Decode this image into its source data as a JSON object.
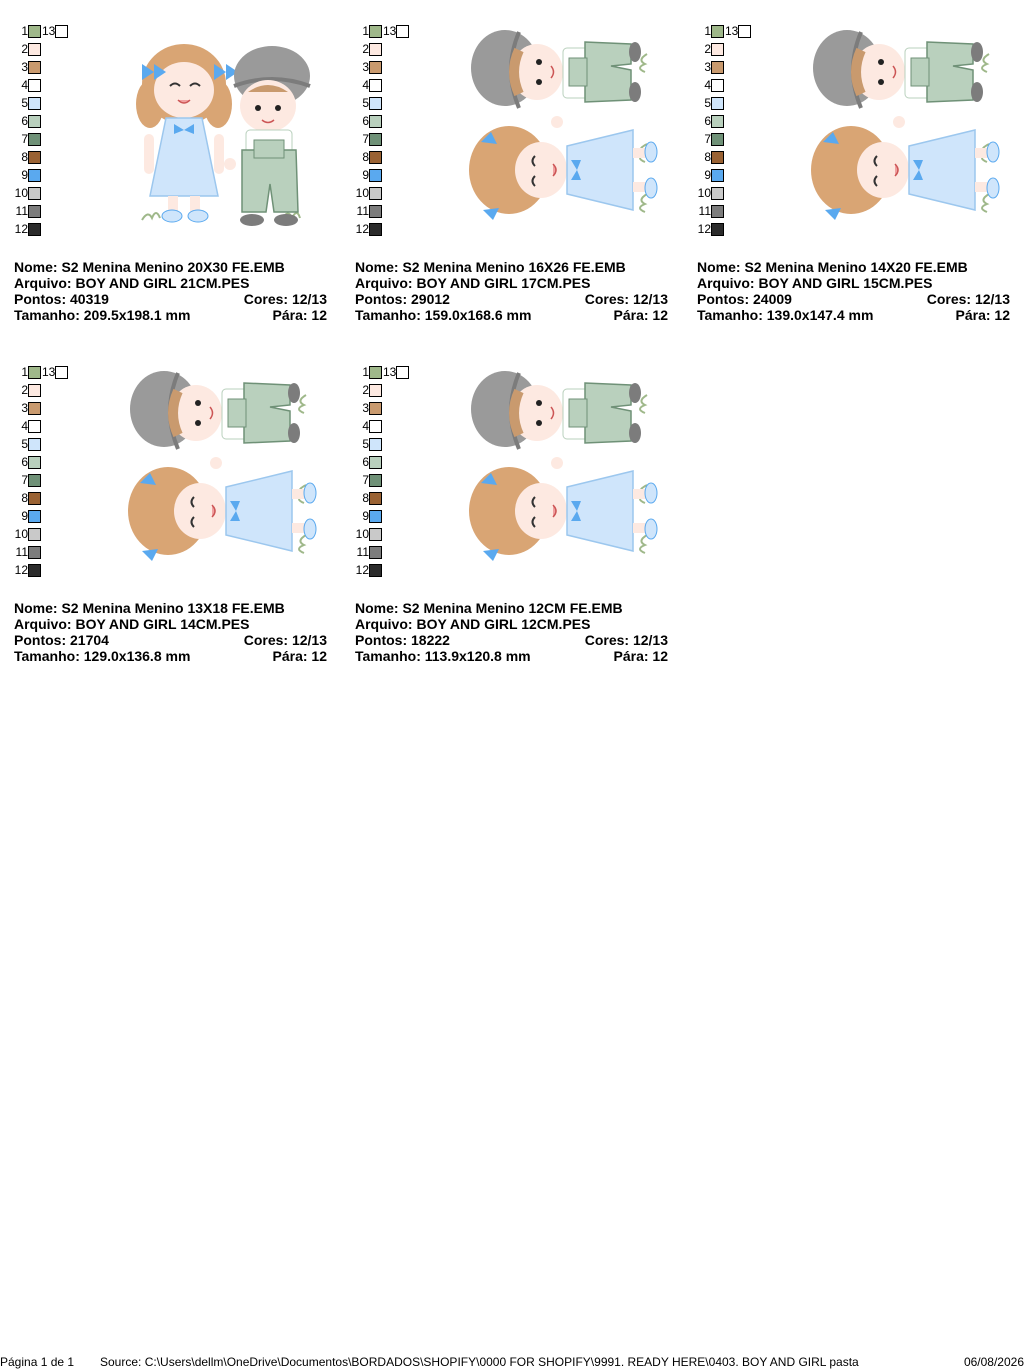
{
  "labels": {
    "nome": "Nome:",
    "arquivo": "Arquivo:",
    "pontos": "Pontos:",
    "cores": "Cores:",
    "tamanho": "Tamanho:",
    "para": "Pára:"
  },
  "palette": {
    "numbers": [
      "1",
      "2",
      "3",
      "4",
      "5",
      "6",
      "7",
      "8",
      "9",
      "10",
      "11",
      "12"
    ],
    "colors": [
      "#9fb88a",
      "#fde9e1",
      "#c99a6e",
      "#ffffff",
      "#cfe5fb",
      "#b9d0bd",
      "#6f9177",
      "#9a6233",
      "#5aa9ef",
      "#c9c9c9",
      "#7c7c7c",
      "#2b2b2b"
    ],
    "extra_number": "13",
    "extra_color": "#ffffff"
  },
  "designs": [
    {
      "nome": "S2 Menina Menino 20X30 FE.EMB",
      "arquivo": "BOY AND GIRL 21CM.PES",
      "pontos": "40319",
      "cores": "12/13",
      "tamanho": "209.5x198.1 mm",
      "para": "12",
      "art": "girl-and-boy-upright"
    },
    {
      "nome": "S2 Menina Menino 16X26 FE.EMB",
      "arquivo": "BOY AND GIRL 17CM.PES",
      "pontos": "29012",
      "cores": "12/13",
      "tamanho": "159.0x168.6 mm",
      "para": "12",
      "art": "girl-and-boy-rotated"
    },
    {
      "nome": "S2 Menina Menino 14X20 FE.EMB",
      "arquivo": "BOY AND GIRL 15CM.PES",
      "pontos": "24009",
      "cores": "12/13",
      "tamanho": "139.0x147.4 mm",
      "para": "12",
      "art": "girl-and-boy-rotated"
    },
    {
      "nome": "S2 Menina Menino 13X18 FE.EMB",
      "arquivo": "BOY AND GIRL 14CM.PES",
      "pontos": "21704",
      "cores": "12/13",
      "tamanho": "129.0x136.8 mm",
      "para": "12",
      "art": "girl-and-boy-rotated"
    },
    {
      "nome": "S2 Menina Menino 12CM FE.EMB",
      "arquivo": "BOY AND GIRL 12CM.PES",
      "pontos": "18222",
      "cores": "12/13",
      "tamanho": "113.9x120.8 mm",
      "para": "12",
      "art": "girl-and-boy-rotated"
    }
  ],
  "footer": {
    "page": "Página 1 de 1",
    "source": "Source: C:\\Users\\dellm\\OneDrive\\Documentos\\BORDADOS\\SHOPIFY\\0000 FOR SHOPIFY\\9991. READY HERE\\0403. BOY AND GIRL pasta",
    "date": "06/08/2026"
  }
}
